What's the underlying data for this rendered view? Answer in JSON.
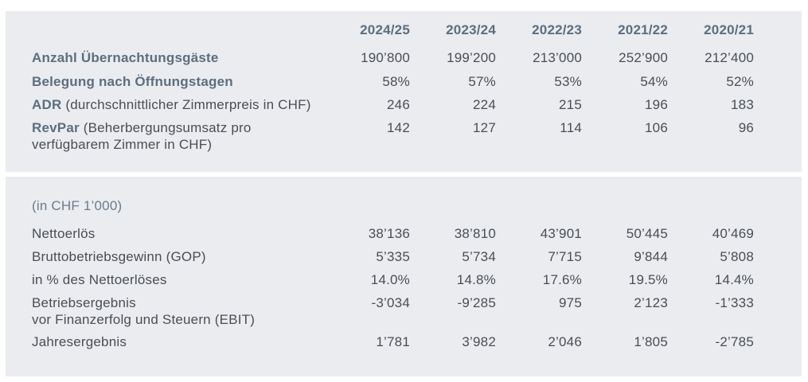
{
  "columns": [
    "2024/25",
    "2023/24",
    "2022/23",
    "2021/22",
    "2020/21"
  ],
  "kpi": {
    "rows": [
      {
        "label_bold": "Anzahl Übernachtungsgäste",
        "label_rest": "",
        "values": [
          "190’800",
          "199’200",
          "213’000",
          "252’900",
          "212’400"
        ]
      },
      {
        "label_bold": "Belegung nach Öffnungstagen",
        "label_rest": "",
        "values": [
          "58%",
          "57%",
          "53%",
          "54%",
          "52%"
        ]
      },
      {
        "label_bold": "ADR",
        "label_rest": " (durchschnittlicher Zimmerpreis in CHF)",
        "values": [
          "246",
          "224",
          "215",
          "196",
          "183"
        ]
      },
      {
        "label_bold": "RevPar",
        "label_rest": " (Beherbergungsumsatz pro",
        "label_line2": "verfügbarem Zimmer in CHF)",
        "values": [
          "142",
          "127",
          "114",
          "106",
          "96"
        ]
      }
    ]
  },
  "finance": {
    "unit_note": "(in CHF 1’000)",
    "rows": [
      {
        "label": "Nettoerlös",
        "values": [
          "38’136",
          "38’810",
          "43’901",
          "50’445",
          "40’469"
        ]
      },
      {
        "label": "Bruttobetriebsgewinn (GOP)",
        "values": [
          "5’335",
          "5’734",
          "7’715",
          "9’844",
          "5’808"
        ]
      },
      {
        "label": "in % des Nettoerlöses",
        "values": [
          "14.0%",
          "14.8%",
          "17.6%",
          "19.5%",
          "14.4%"
        ]
      },
      {
        "label": "Betriebsergebnis",
        "label_line2": "vor Finanzerfolg und Steuern (EBIT)",
        "values": [
          "-3’034",
          "-9’285",
          "975",
          "2’123",
          "-1’333"
        ]
      },
      {
        "label": "Jahresergebnis",
        "values": [
          "1’781",
          "3’982",
          "2’046",
          "1’805",
          "-2’785"
        ]
      }
    ]
  },
  "colors": {
    "panel_bg": "#eaecf0",
    "accent_slate": "#5d6e7e",
    "text_dark": "#4a4e53",
    "note_slate": "#6d7c89",
    "page_bg": "#ffffff"
  }
}
